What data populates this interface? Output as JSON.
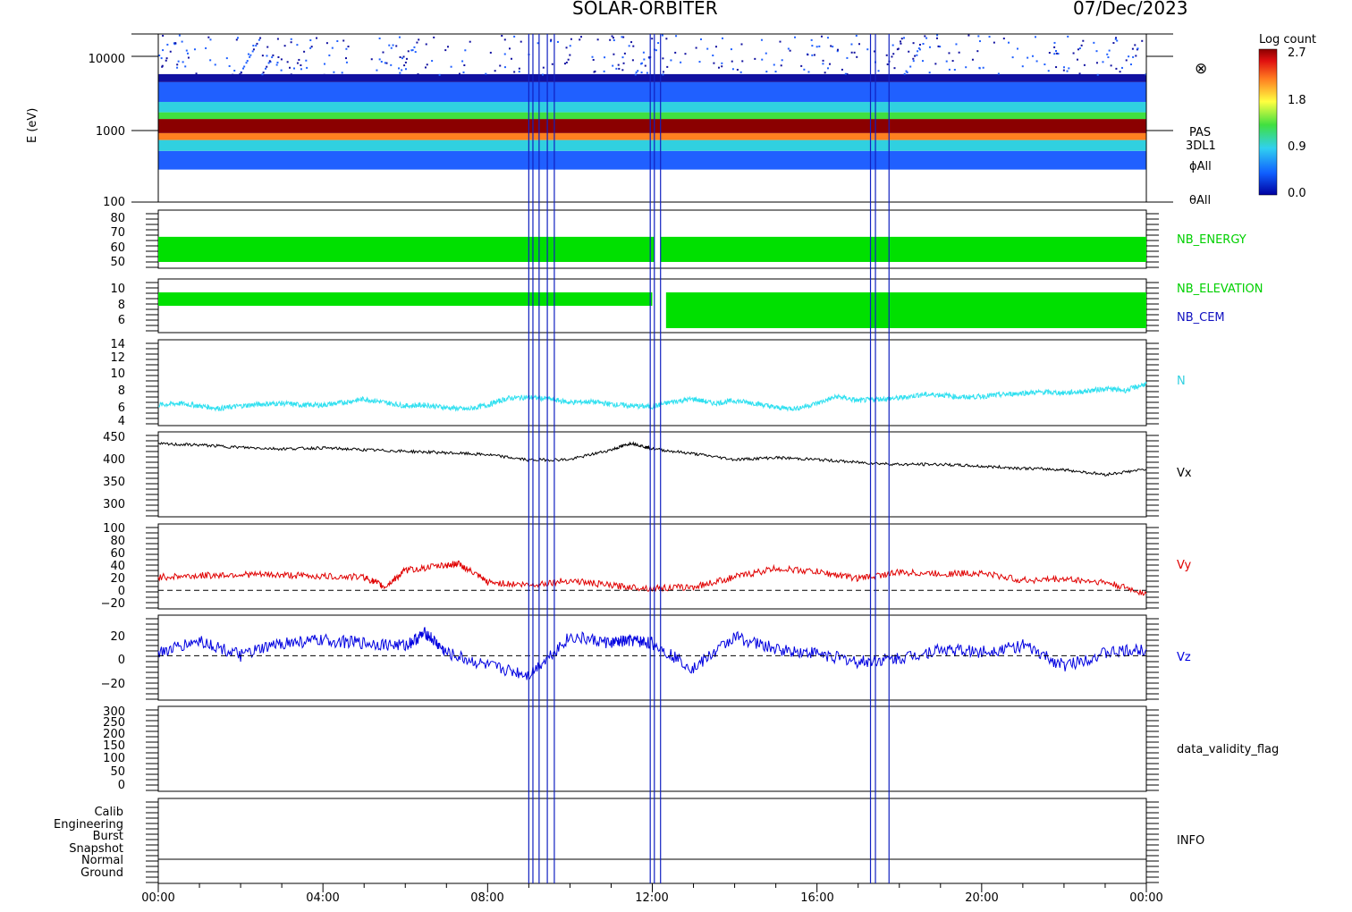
{
  "header": {
    "mission": "SOLAR-ORBITER",
    "date": "07/Dec/2023"
  },
  "colorbar": {
    "title": "Log count",
    "ticks": [
      "2.7",
      "1.8",
      "0.9",
      "0.0"
    ]
  },
  "symbol": "⊗",
  "panels": {
    "spectrogram": {
      "ylabel": "E (eV)",
      "ticks": [
        "10000",
        "1000",
        "100"
      ],
      "labels": [
        "PAS",
        "3DL1",
        "ϕAll",
        "θAll"
      ]
    },
    "energy": {
      "ticks": [
        "80",
        "70",
        "60",
        "50"
      ],
      "label": "NB_ENERGY"
    },
    "elevation": {
      "ticks": [
        "10",
        "8",
        "6"
      ],
      "label": "NB_ELEVATION",
      "label2": "NB_CEM"
    },
    "n": {
      "ticks": [
        "14",
        "12",
        "10",
        "8",
        "6",
        "4"
      ],
      "label": "N"
    },
    "vx": {
      "ticks": [
        "450",
        "400",
        "350",
        "300"
      ],
      "label": "Vx"
    },
    "vy": {
      "ticks": [
        "100",
        "80",
        "60",
        "40",
        "20",
        "0",
        "−20"
      ],
      "label": "Vy"
    },
    "vz": {
      "ticks": [
        "20",
        "0",
        "−20"
      ],
      "label": "Vz"
    },
    "validity": {
      "ticks": [
        "300",
        "250",
        "200",
        "150",
        "100",
        "50",
        "0"
      ],
      "label": "data_validity_flag"
    },
    "info": {
      "ticks": [
        "Calib",
        "Engineering",
        "Burst",
        "Snapshot",
        "Normal",
        "Ground"
      ],
      "label": "INFO"
    }
  },
  "xaxis": {
    "ticks": [
      "00:00",
      "04:00",
      "08:00",
      "12:00",
      "16:00",
      "20:00",
      "00:00"
    ]
  },
  "event_lines_hours": [
    9.0,
    9.1,
    9.25,
    9.45,
    9.62,
    11.95,
    12.05,
    12.2,
    17.3,
    17.42,
    17.75
  ],
  "chart_data": [
    {
      "type": "heatmap",
      "title": "",
      "ylabel": "E (eV)",
      "yscale": "log",
      "ylim": [
        100,
        14000
      ],
      "xlim": [
        "00:00",
        "24:00"
      ],
      "bands_eV": [
        {
          "range": [
            260,
            450
          ],
          "logcount": 0.3
        },
        {
          "range": [
            450,
            620
          ],
          "logcount": 0.9
        },
        {
          "range": [
            620,
            760
          ],
          "logcount": 1.8
        },
        {
          "range": [
            760,
            1150
          ],
          "logcount": 2.6
        },
        {
          "range": [
            1150,
            1400
          ],
          "logcount": 1.2
        },
        {
          "range": [
            1400,
            1900
          ],
          "logcount": 0.9
        },
        {
          "range": [
            1900,
            3400
          ],
          "logcount": 0.5
        },
        {
          "range": [
            3400,
            4300
          ],
          "logcount": 0.1
        }
      ],
      "colorscale": [
        "#1010a0",
        "#2060ff",
        "#30d0e0",
        "#40e040",
        "#ffff40",
        "#ff8020",
        "#e01010",
        "#8b0000"
      ]
    },
    {
      "type": "bar",
      "name": "NB_ENERGY",
      "ylim": [
        45,
        82
      ],
      "value_range": [
        49,
        65
      ],
      "gap_hours": [
        12.05,
        12.2
      ],
      "color": "#00e000"
    },
    {
      "type": "bar",
      "name": "NB_ELEVATION",
      "ylim": [
        4.5,
        10.5
      ],
      "segments": [
        {
          "x": [
            "00:00",
            "12:00"
          ],
          "range": [
            7.5,
            9
          ]
        },
        {
          "x": [
            "12:20",
            "24:00"
          ],
          "range": [
            5,
            9
          ]
        }
      ],
      "color": "#00e000"
    },
    {
      "type": "line",
      "name": "N",
      "ylim": [
        4,
        14
      ],
      "x_hours": [
        0,
        0.5,
        1,
        1.5,
        2,
        2.5,
        3,
        3.5,
        4,
        4.5,
        5,
        5.5,
        6,
        6.5,
        7,
        7.5,
        8,
        8.5,
        9,
        9.5,
        10,
        10.5,
        11,
        11.5,
        12,
        12.5,
        13,
        13.5,
        14,
        14.5,
        15,
        15.5,
        16,
        16.5,
        17,
        17.5,
        18,
        18.5,
        19,
        19.5,
        20,
        20.5,
        21,
        21.5,
        22,
        22.5,
        23,
        23.5,
        24
      ],
      "values": [
        6.4,
        6.6,
        6.3,
        6.0,
        6.3,
        6.5,
        6.6,
        6.4,
        6.4,
        6.7,
        7.1,
        6.7,
        6.3,
        6.4,
        6.1,
        5.9,
        6.4,
        7.2,
        7.3,
        7.1,
        6.7,
        6.8,
        6.5,
        6.3,
        6.2,
        6.8,
        7.1,
        6.6,
        6.9,
        6.6,
        6.1,
        6.0,
        6.6,
        7.4,
        6.9,
        7.1,
        7.2,
        7.6,
        7.6,
        7.3,
        7.4,
        7.6,
        7.8,
        7.9,
        7.8,
        8.0,
        8.3,
        8.1,
        8.9
      ],
      "color": "#30e0f0"
    },
    {
      "type": "line",
      "name": "Vx",
      "ylim": [
        280,
        455
      ],
      "x_hours": [
        0,
        1,
        2,
        3,
        4,
        5,
        6,
        7,
        8,
        9,
        10,
        11,
        11.5,
        12,
        13,
        14,
        15,
        16,
        17,
        18,
        19,
        20,
        21,
        22,
        23,
        24
      ],
      "values": [
        430,
        428,
        423,
        420,
        422,
        418,
        415,
        412,
        408,
        397,
        398,
        418,
        432,
        420,
        410,
        398,
        402,
        398,
        392,
        388,
        388,
        384,
        380,
        377,
        367,
        378
      ],
      "color": "#000000"
    },
    {
      "type": "line",
      "name": "Vy",
      "ylim": [
        -28,
        100
      ],
      "zero_line": true,
      "x_hours": [
        0,
        1,
        2,
        3,
        4,
        5,
        5.5,
        6,
        7,
        7.3,
        8,
        9,
        10,
        11,
        12,
        13,
        14,
        15,
        16,
        17,
        18,
        19,
        20,
        21,
        22,
        23,
        24
      ],
      "values": [
        20,
        22,
        24,
        23,
        21,
        20,
        5,
        30,
        38,
        40,
        12,
        8,
        15,
        7,
        3,
        5,
        20,
        33,
        28,
        18,
        27,
        25,
        26,
        15,
        17,
        12,
        -5
      ],
      "color": "#e00000"
    },
    {
      "type": "line",
      "name": "Vz",
      "ylim": [
        -35,
        32
      ],
      "zero_line": true,
      "x_hours": [
        0,
        1,
        2,
        3,
        4,
        5,
        6,
        6.5,
        7,
        8,
        9,
        10,
        11,
        11.5,
        12,
        13,
        14,
        15,
        16,
        17,
        18,
        19,
        20,
        21,
        22,
        23,
        24
      ],
      "values": [
        2,
        12,
        0,
        10,
        12,
        10,
        8,
        18,
        2,
        -8,
        -15,
        15,
        10,
        12,
        10,
        -10,
        15,
        5,
        2,
        -5,
        -2,
        5,
        3,
        8,
        -8,
        2,
        5
      ],
      "color": "#0000e0"
    },
    {
      "type": "line",
      "name": "data_validity_flag",
      "ylim": [
        -20,
        310
      ],
      "values": []
    }
  ]
}
